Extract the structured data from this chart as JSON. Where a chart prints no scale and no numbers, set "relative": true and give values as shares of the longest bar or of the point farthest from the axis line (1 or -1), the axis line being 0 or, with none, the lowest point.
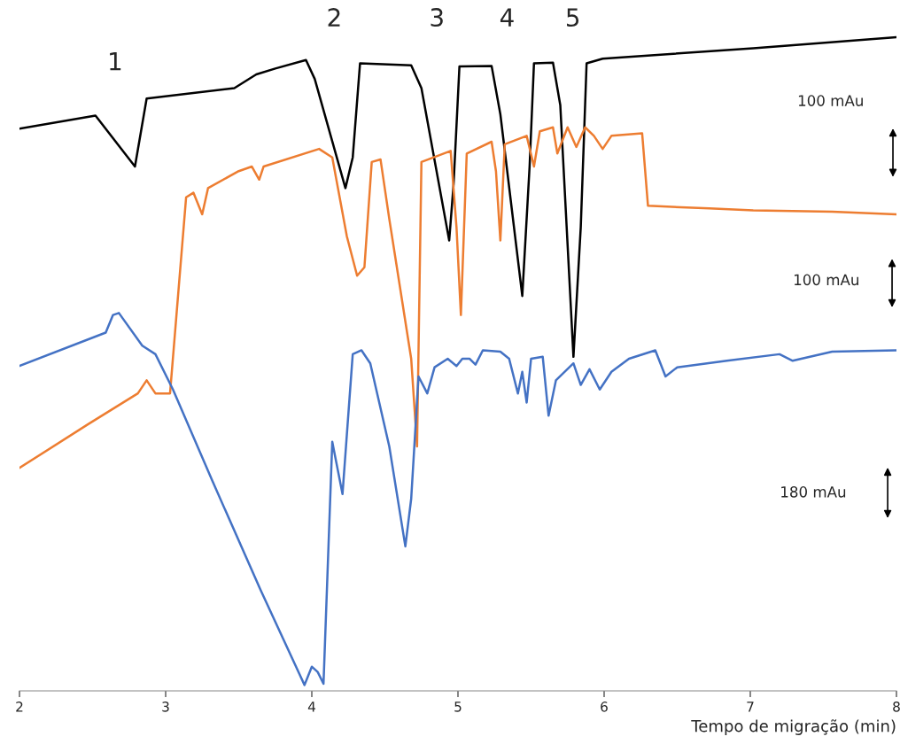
{
  "chart_data": {
    "type": "line",
    "relative": true,
    "xlabel": "Tempo de migração (min)",
    "xlim": [
      2,
      8
    ],
    "xticks": [
      2,
      3,
      4,
      5,
      6,
      7,
      8
    ],
    "grid": false,
    "legend": false,
    "tick_labels": "x",
    "series": [
      {
        "color": "#000000",
        "x": [
          2.0,
          2.52,
          2.79,
          2.87,
          3.47,
          3.62,
          3.75,
          3.96,
          4.02,
          4.23,
          4.28,
          4.33,
          4.68,
          4.75,
          4.94,
          4.97,
          5.01,
          5.23,
          5.29,
          5.44,
          5.49,
          5.52,
          5.65,
          5.7,
          5.79,
          5.84,
          5.88,
          5.99,
          7.02,
          8.0
        ],
        "values": [
          0.86,
          0.88,
          0.802,
          0.906,
          0.922,
          0.943,
          0.952,
          0.965,
          0.936,
          0.769,
          0.816,
          0.96,
          0.957,
          0.922,
          0.689,
          0.775,
          0.955,
          0.956,
          0.882,
          0.604,
          0.802,
          0.96,
          0.961,
          0.896,
          0.511,
          0.709,
          0.96,
          0.967,
          0.983,
          1.0
        ]
      },
      {
        "color": "#ed7d31",
        "x": [
          2.0,
          2.47,
          2.81,
          2.87,
          2.93,
          3.03,
          3.14,
          3.19,
          3.25,
          3.29,
          3.5,
          3.59,
          3.64,
          3.67,
          4.05,
          4.14,
          4.24,
          4.31,
          4.36,
          4.41,
          4.47,
          4.53,
          4.68,
          4.72,
          4.75,
          4.95,
          4.99,
          5.02,
          5.06,
          5.23,
          5.26,
          5.29,
          5.32,
          5.47,
          5.52,
          5.56,
          5.65,
          5.68,
          5.75,
          5.81,
          5.87,
          5.93,
          5.99,
          6.05,
          6.26,
          6.3,
          6.72,
          7.02,
          7.56,
          8.0
        ],
        "values": [
          0.341,
          0.408,
          0.455,
          0.475,
          0.455,
          0.455,
          0.755,
          0.762,
          0.729,
          0.769,
          0.795,
          0.802,
          0.782,
          0.802,
          0.829,
          0.816,
          0.695,
          0.635,
          0.648,
          0.809,
          0.813,
          0.722,
          0.508,
          0.374,
          0.809,
          0.826,
          0.709,
          0.575,
          0.822,
          0.84,
          0.795,
          0.689,
          0.836,
          0.849,
          0.802,
          0.856,
          0.862,
          0.822,
          0.862,
          0.832,
          0.862,
          0.849,
          0.829,
          0.849,
          0.853,
          0.742,
          0.738,
          0.735,
          0.733,
          0.729
        ]
      },
      {
        "color": "#4472c4",
        "x": [
          2.0,
          2.59,
          2.64,
          2.68,
          2.84,
          2.93,
          3.05,
          3.32,
          3.65,
          3.95,
          4.0,
          4.04,
          4.08,
          4.14,
          4.21,
          4.28,
          4.34,
          4.4,
          4.53,
          4.64,
          4.68,
          4.73,
          4.79,
          4.84,
          4.93,
          4.99,
          5.03,
          5.08,
          5.12,
          5.17,
          5.29,
          5.35,
          5.41,
          5.44,
          5.47,
          5.5,
          5.58,
          5.62,
          5.67,
          5.79,
          5.84,
          5.9,
          5.97,
          6.05,
          6.17,
          6.35,
          6.42,
          6.5,
          6.84,
          7.2,
          7.29,
          7.56,
          8.0
        ],
        "values": [
          0.497,
          0.548,
          0.575,
          0.578,
          0.528,
          0.515,
          0.461,
          0.321,
          0.154,
          0.009,
          0.037,
          0.029,
          0.011,
          0.381,
          0.301,
          0.515,
          0.521,
          0.501,
          0.374,
          0.221,
          0.294,
          0.481,
          0.455,
          0.495,
          0.508,
          0.497,
          0.508,
          0.508,
          0.499,
          0.521,
          0.519,
          0.508,
          0.455,
          0.488,
          0.441,
          0.508,
          0.511,
          0.421,
          0.475,
          0.501,
          0.468,
          0.492,
          0.461,
          0.488,
          0.508,
          0.521,
          0.481,
          0.495,
          0.505,
          0.515,
          0.505,
          0.519,
          0.521
        ]
      }
    ],
    "annotations": [
      "1",
      "2",
      "3",
      "4",
      "5",
      "100 mAu",
      "100 mAu",
      "180 mAu"
    ]
  }
}
